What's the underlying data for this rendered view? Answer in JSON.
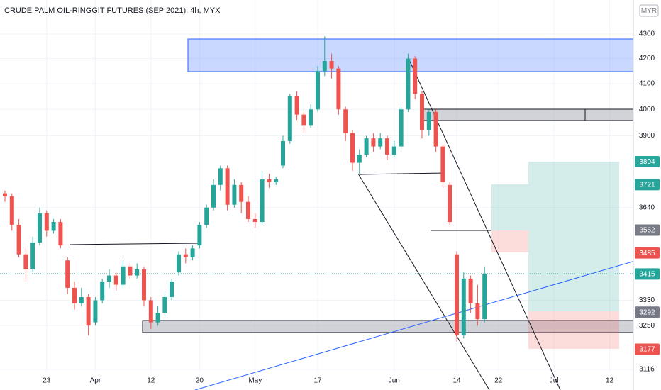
{
  "chart_data": {
    "type": "candlestick",
    "title": "CRUDE PALM OIL-RINGGIT FUTURES (SEP 2021), 4h, MYX",
    "currency": "MYR",
    "categories": [
      null,
      null,
      null,
      null,
      null,
      null,
      "23",
      null,
      null,
      null,
      null,
      null,
      null,
      "Apr",
      null,
      null,
      null,
      null,
      null,
      null,
      null,
      "12",
      null,
      null,
      null,
      null,
      null,
      null,
      "20",
      null,
      null,
      null,
      null,
      null,
      null,
      null,
      "May",
      null,
      null,
      null,
      null,
      null,
      null,
      null,
      null,
      "17",
      null,
      null,
      null,
      null,
      null,
      null,
      null,
      null,
      null,
      null,
      "Jun",
      null,
      null,
      null,
      null,
      null,
      null,
      null,
      null,
      "14",
      null,
      null,
      null,
      null,
      null,
      "22",
      null,
      null,
      null,
      null,
      null,
      null,
      null,
      "Jul",
      null,
      null,
      null,
      null,
      null,
      null,
      null,
      "12"
    ],
    "open": [
      3690,
      3680,
      3580,
      3480,
      3430,
      3520,
      3620,
      3560,
      3590,
      3460,
      3370,
      3320,
      3340,
      3260,
      3330,
      3390,
      3410,
      3380,
      3440,
      3410,
      3430,
      3330,
      3260,
      3290,
      3340,
      3420,
      3480,
      3470,
      3510,
      3580,
      3640,
      3720,
      3780,
      3650,
      3720,
      3660,
      3600,
      3590,
      3740,
      3730,
      3790,
      3880,
      4050,
      3980,
      3940,
      4000,
      4150,
      4190,
      4160,
      4000,
      3910,
      3800,
      3830,
      3890,
      3860,
      3890,
      3830,
      3860,
      4000,
      4200,
      4060,
      3920,
      3990,
      3860,
      3720,
      3480,
      3220,
      3400,
      3320,
      3270,
      null,
      null,
      null,
      null,
      null,
      null,
      null,
      null,
      null,
      null,
      null,
      null,
      null,
      null,
      null,
      null,
      null,
      null
    ],
    "high": [
      3700,
      3690,
      3600,
      3500,
      3540,
      3640,
      3630,
      3600,
      3600,
      3470,
      3390,
      3370,
      3350,
      3340,
      3400,
      3430,
      3420,
      3460,
      3450,
      3450,
      3440,
      3340,
      3310,
      3350,
      3400,
      3490,
      3500,
      3510,
      3590,
      3650,
      3740,
      3790,
      3790,
      3740,
      3730,
      3680,
      3620,
      3770,
      3760,
      3750,
      3900,
      4060,
      4070,
      3990,
      4020,
      4170,
      4290,
      4220,
      4170,
      4010,
      3920,
      3850,
      3900,
      3910,
      3910,
      3900,
      3880,
      4010,
      4220,
      4210,
      4070,
      4000,
      4000,
      3870,
      3730,
      3490,
      3420,
      3410,
      3380,
      3440,
      null,
      null,
      null,
      null,
      null,
      null,
      null,
      null,
      null,
      null,
      null,
      null,
      null,
      null,
      null,
      null,
      null,
      null
    ],
    "low": [
      3660,
      3560,
      3470,
      3390,
      3420,
      3510,
      3540,
      3550,
      3500,
      3350,
      3300,
      3310,
      3220,
      3250,
      3320,
      3370,
      3360,
      3370,
      3400,
      3400,
      3310,
      3240,
      3250,
      3280,
      3330,
      3410,
      3450,
      3460,
      3500,
      3570,
      3630,
      3700,
      3630,
      3640,
      3620,
      3590,
      3570,
      3580,
      3710,
      3720,
      3780,
      3870,
      3960,
      3910,
      3930,
      3990,
      4130,
      4120,
      3980,
      3880,
      3770,
      3760,
      3820,
      3840,
      3850,
      3810,
      3820,
      3850,
      3990,
      4040,
      3890,
      3900,
      3840,
      3710,
      3580,
      3200,
      3210,
      3290,
      3250,
      3260,
      null,
      null,
      null,
      null,
      null,
      null,
      null,
      null,
      null,
      null,
      null,
      null,
      null,
      null,
      null,
      null,
      null,
      null
    ],
    "close": [
      3680,
      3580,
      3480,
      3430,
      3520,
      3620,
      3560,
      3590,
      3510,
      3370,
      3320,
      3340,
      3250,
      3330,
      3390,
      3410,
      3380,
      3440,
      3410,
      3430,
      3330,
      3260,
      3290,
      3340,
      3390,
      3480,
      3470,
      3500,
      3580,
      3640,
      3720,
      3780,
      3650,
      3720,
      3660,
      3600,
      3590,
      3740,
      3730,
      3740,
      3880,
      4050,
      3980,
      3940,
      4000,
      4150,
      4190,
      4160,
      4000,
      3910,
      3800,
      3830,
      3890,
      3860,
      3890,
      3830,
      3860,
      4000,
      4200,
      4060,
      3920,
      3990,
      3860,
      3730,
      3590,
      3220,
      3400,
      3320,
      3270,
      3415,
      null,
      null,
      null,
      null,
      null,
      null,
      null,
      null,
      null,
      null,
      null,
      null,
      null,
      null,
      null,
      null,
      null,
      null
    ],
    "up_color": "#26a69a",
    "down_color": "#ef5350",
    "ylim": [
      3055,
      4443
    ],
    "log_scale": true,
    "grid": true,
    "yticks": [
      3116,
      3250,
      3330,
      3640,
      3900,
      4000,
      4100,
      4200,
      4300
    ],
    "price_labels": [
      {
        "value": 3804,
        "color": "#26a69a"
      },
      {
        "value": 3721,
        "color": "#26a69a"
      },
      {
        "value": 3562,
        "color": "#787b86"
      },
      {
        "value": 3485,
        "color": "#ef5350"
      },
      {
        "value": 3415,
        "color": "#26a69a"
      },
      {
        "value": 3292,
        "color": "#787b86"
      },
      {
        "value": 3177,
        "color": "#ef5350"
      }
    ]
  }
}
